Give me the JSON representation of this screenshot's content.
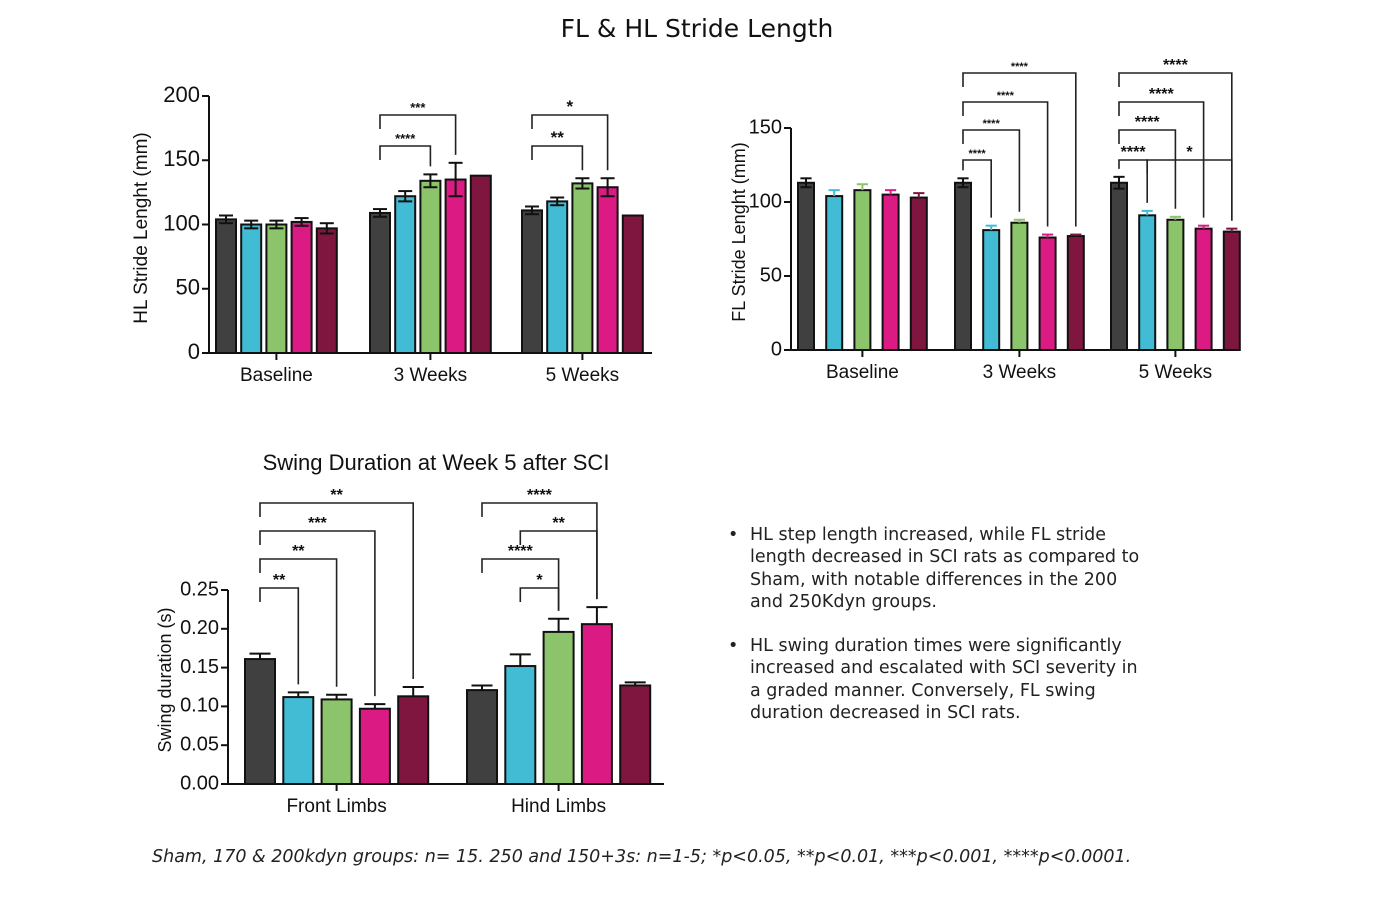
{
  "title": "FL & HL Stride Length",
  "colors": {
    "sham": "#404040",
    "group2": "#42bcd4",
    "group3": "#8bc46a",
    "group4": "#db1a84",
    "group5": "#7f1640"
  },
  "chart_data": [
    {
      "type": "bar",
      "title": "",
      "ylabel": "HL Stride Lenght  (mm)",
      "xlabel": "",
      "ylim": [
        0,
        200
      ],
      "yticks": [
        "0",
        "50",
        "100",
        "150",
        "200"
      ],
      "categories": [
        "Baseline",
        "3 Weeks",
        "5 Weeks"
      ],
      "values": [
        [
          104,
          100,
          100,
          102,
          97
        ],
        [
          109,
          122,
          134,
          135,
          138
        ],
        [
          111,
          118,
          132,
          129,
          107
        ]
      ],
      "errors": [
        [
          3,
          3,
          3,
          3,
          4
        ],
        [
          3,
          4,
          5,
          13,
          0
        ],
        [
          3,
          3,
          4,
          7,
          0
        ]
      ],
      "significance": [
        {
          "category": 1,
          "from": 0,
          "to": 2,
          "label": "****"
        },
        {
          "category": 1,
          "from": 0,
          "to": 3,
          "label": "***"
        },
        {
          "category": 2,
          "from": 0,
          "to": 2,
          "label": "**"
        },
        {
          "category": 2,
          "from": 0,
          "to": 3,
          "label": "*"
        }
      ]
    },
    {
      "type": "bar",
      "title": "",
      "ylabel": "FL Stride Lenght (mm)",
      "xlabel": "",
      "ylim": [
        0,
        150
      ],
      "yticks": [
        "0",
        "50",
        "100",
        "150"
      ],
      "categories": [
        "Baseline",
        "3 Weeks",
        "5 Weeks"
      ],
      "values": [
        [
          113,
          104,
          108,
          105,
          103
        ],
        [
          113,
          81,
          86,
          76,
          77
        ],
        [
          113,
          91,
          88,
          82,
          80
        ]
      ],
      "errors": [
        [
          3,
          4,
          4,
          3,
          3
        ],
        [
          3,
          3,
          2,
          2,
          1
        ],
        [
          4,
          3,
          2,
          2,
          2
        ]
      ],
      "significance": [
        {
          "category": 1,
          "from": 0,
          "to": 1,
          "label": "****"
        },
        {
          "category": 1,
          "from": 0,
          "to": 2,
          "label": "****"
        },
        {
          "category": 1,
          "from": 0,
          "to": 3,
          "label": "****"
        },
        {
          "category": 1,
          "from": 0,
          "to": 4,
          "label": "****"
        },
        {
          "category": 2,
          "from": 0,
          "to": 1,
          "label": "****"
        },
        {
          "category": 2,
          "from": 1,
          "to": 4,
          "label": "*"
        },
        {
          "category": 2,
          "from": 0,
          "to": 2,
          "label": "****"
        },
        {
          "category": 2,
          "from": 0,
          "to": 3,
          "label": "****"
        },
        {
          "category": 2,
          "from": 0,
          "to": 4,
          "label": "****"
        }
      ]
    },
    {
      "type": "bar",
      "title": "Swing Duration at Week 5 after SCI",
      "ylabel": "Swing duration (s)",
      "xlabel": "",
      "ylim": [
        0,
        0.25
      ],
      "yticks": [
        "0.00",
        "0.05",
        "0.10",
        "0.15",
        "0.20",
        "0.25"
      ],
      "categories": [
        "Front Limbs",
        "Hind Limbs"
      ],
      "values": [
        [
          0.161,
          0.112,
          0.109,
          0.097,
          0.113
        ],
        [
          0.121,
          0.152,
          0.196,
          0.206,
          0.127
        ]
      ],
      "errors": [
        [
          0.007,
          0.006,
          0.006,
          0.006,
          0.012
        ],
        [
          0.006,
          0.015,
          0.017,
          0.022,
          0.004
        ]
      ],
      "significance": [
        {
          "category": 0,
          "from": 0,
          "to": 1,
          "label": "**"
        },
        {
          "category": 0,
          "from": 0,
          "to": 2,
          "label": "**"
        },
        {
          "category": 0,
          "from": 0,
          "to": 3,
          "label": "***"
        },
        {
          "category": 0,
          "from": 0,
          "to": 4,
          "label": "**"
        },
        {
          "category": 1,
          "from": 1,
          "to": 2,
          "label": "*"
        },
        {
          "category": 1,
          "from": 0,
          "to": 2,
          "label": "****"
        },
        {
          "category": 1,
          "from": 1,
          "to": 3,
          "label": "**"
        },
        {
          "category": 1,
          "from": 0,
          "to": 3,
          "label": "****"
        }
      ]
    }
  ],
  "notes": [
    "HL step length increased, while FL stride length decreased in SCI rats as compared to Sham, with notable differences in the 200 and 250Kdyn groups.",
    "HL swing duration times were significantly increased and escalated with SCI severity in a graded manner. Conversely, FL swing duration decreased in SCI rats."
  ],
  "bullet": "•",
  "footnote": "Sham, 170 & 200kdyn groups: n= 15. 250 and 150+3s: n=1-5; *p<0.05, **p<0.01, ***p<0.001, ****p<0.0001."
}
